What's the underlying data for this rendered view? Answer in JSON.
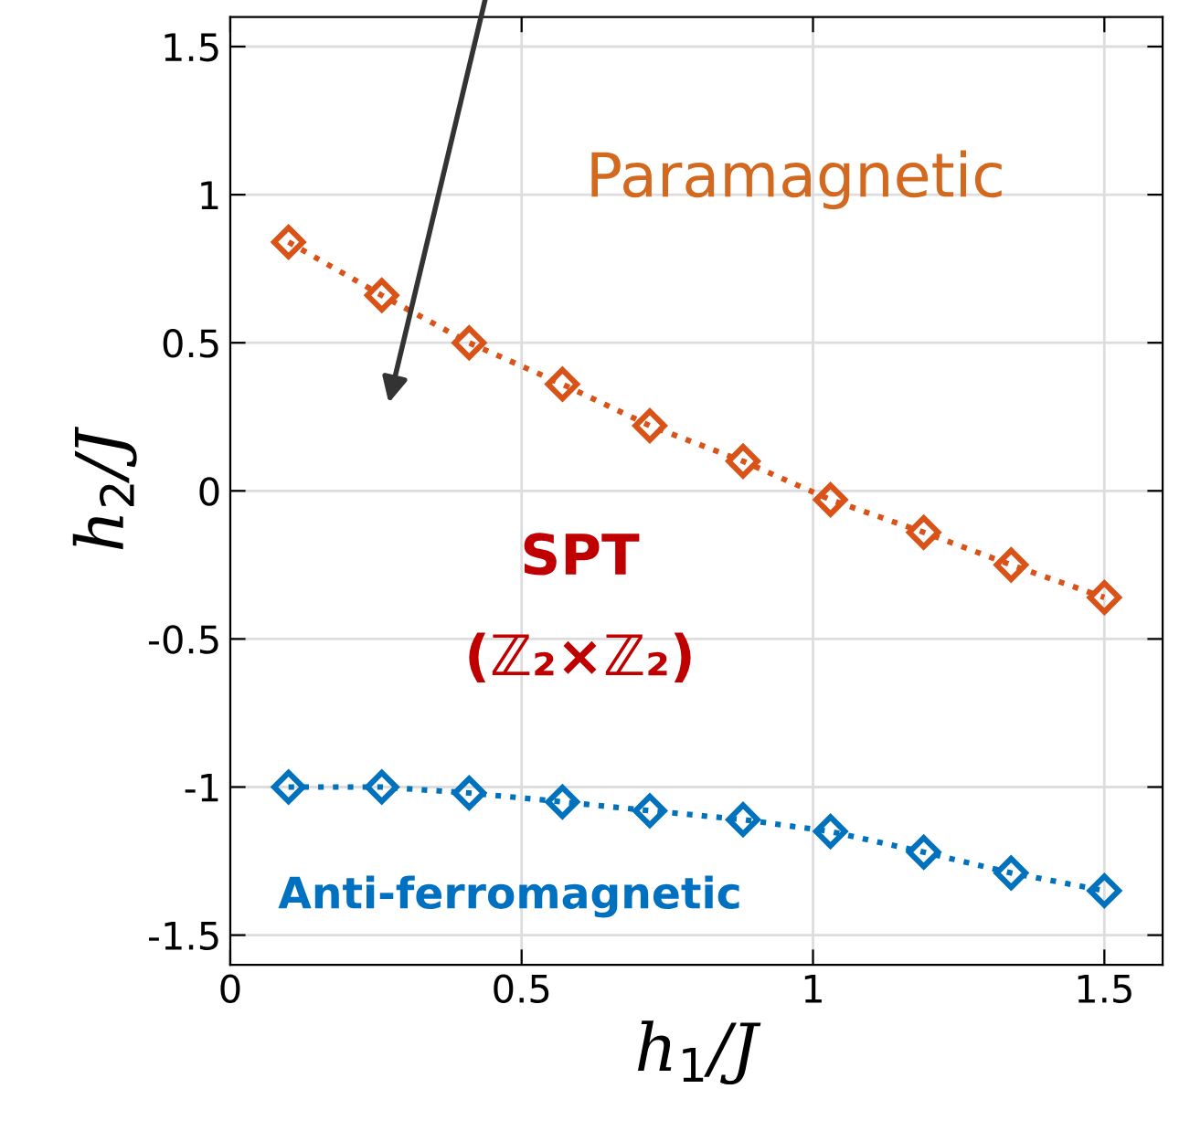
{
  "chart_data": {
    "type": "line",
    "xlabel": "h$_{1}$/J",
    "ylabel": "h$_{2}$/J",
    "x": [
      0.1,
      0.26,
      0.41,
      0.57,
      0.72,
      0.88,
      1.03,
      1.19,
      1.34,
      1.5
    ],
    "series": [
      {
        "color": "#d95319",
        "values": [
          0.84,
          0.66,
          0.5,
          0.36,
          0.22,
          0.1,
          -0.03,
          -0.14,
          -0.25,
          -0.36
        ]
      },
      {
        "color": "#0072bd",
        "values": [
          -1.0,
          -1.0,
          -1.02,
          -1.05,
          -1.08,
          -1.11,
          -1.15,
          -1.22,
          -1.29,
          -1.35
        ]
      }
    ],
    "xlim": [
      0,
      1.6
    ],
    "ylim": [
      -1.6,
      1.6
    ],
    "xticks": [
      0,
      0.5,
      1,
      1.5
    ],
    "yticks": [
      -1.5,
      -1,
      -0.5,
      0,
      0.5,
      1,
      1.5
    ],
    "grid": true,
    "marker": "diamond",
    "line_style": "dotted",
    "annotations": [
      "Paramagnetic",
      "SPT",
      "(ℤ₂×ℤ₂)",
      "Anti-ferromagnetic"
    ]
  }
}
